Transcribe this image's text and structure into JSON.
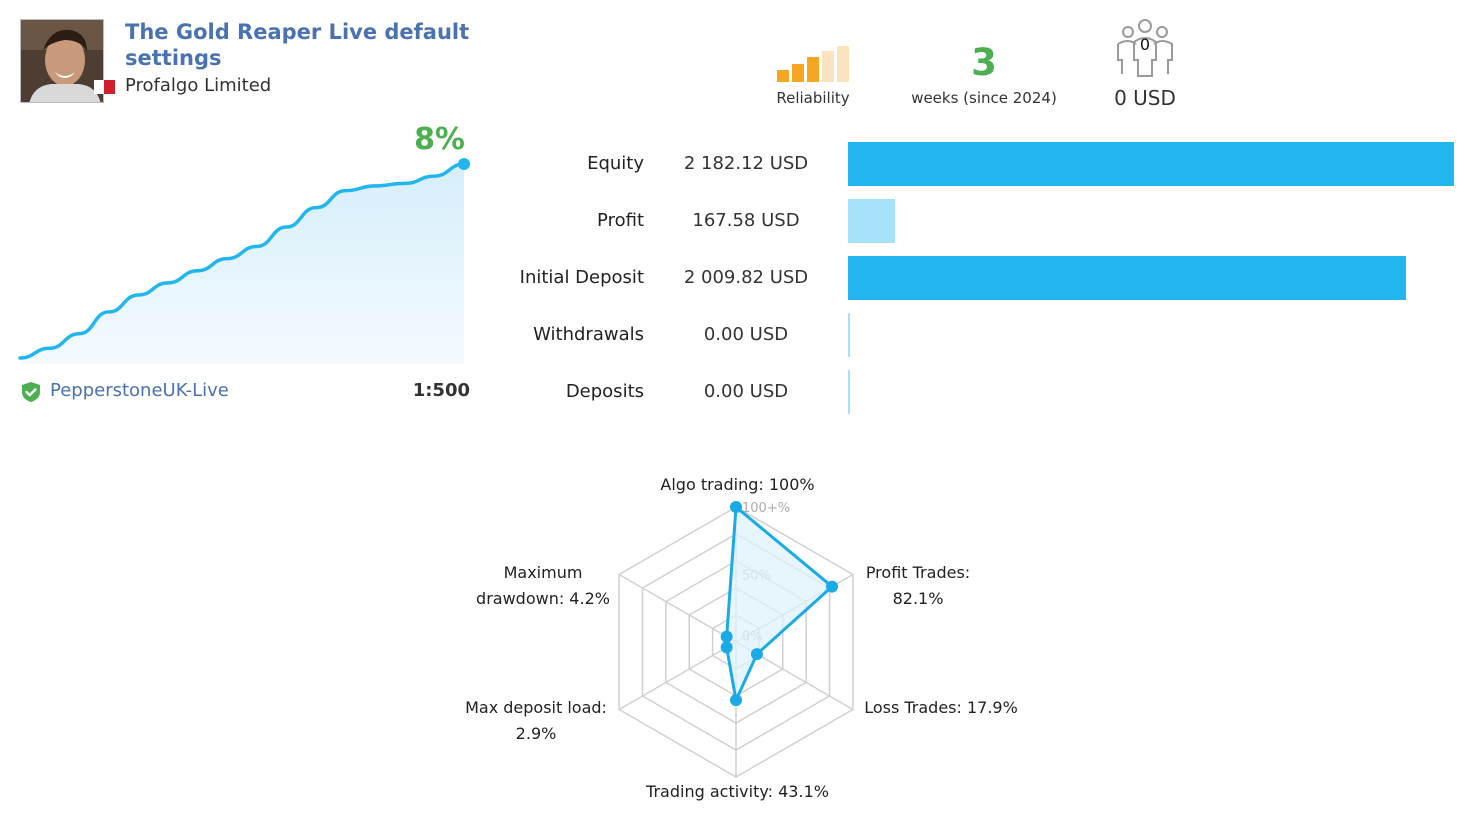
{
  "signal": {
    "title": "The Gold Reaper Live default settings",
    "author": "Profalgo Limited",
    "avatar_icon": "user-photo-icon",
    "flag_icon": "country-flag-icon"
  },
  "stats": {
    "reliability_label": "Reliability",
    "reliability_level": 3,
    "reliability_max": 5,
    "weeks_value": "3",
    "weeks_label": "weeks (since 2024)",
    "subscribers_count": "0",
    "subscribers_icon": "subscribers-icon",
    "funds_label": "0 USD"
  },
  "growth": {
    "percent_label": "8%",
    "server": "PepperstoneUK-Live",
    "leverage": "1:500",
    "verified_icon": "verified-shield-icon",
    "curve": [
      0.0,
      0.4,
      1.0,
      1.9,
      2.6,
      3.1,
      3.6,
      4.1,
      4.6,
      5.4,
      6.2,
      6.9,
      7.1,
      7.2,
      7.5,
      8.0
    ]
  },
  "balance": {
    "max_value": 2182.12,
    "rows": [
      {
        "label": "Equity",
        "value": "2 182.12 USD",
        "amount": 2182.12,
        "color": "#22b5ee"
      },
      {
        "label": "Profit",
        "value": "167.58 USD",
        "amount": 167.58,
        "color": "#a8e2fa"
      },
      {
        "label": "Initial Deposit",
        "value": "2 009.82 USD",
        "amount": 2009.82,
        "color": "#22b5ee"
      },
      {
        "label": "Withdrawals",
        "value": "0.00 USD",
        "amount": 0,
        "color": "#a8e2fa"
      },
      {
        "label": "Deposits",
        "value": "0.00 USD",
        "amount": 0,
        "color": "#a8e2fa"
      }
    ]
  },
  "radar": {
    "ticks": [
      "100+%",
      "50%",
      "0%"
    ],
    "axes": [
      {
        "name": "Algo trading",
        "line1": "Algo trading: 100%",
        "line2": "",
        "value": 100
      },
      {
        "name": "Profit Trades",
        "line1": "Profit Trades:",
        "line2": "82.1%",
        "value": 82.1
      },
      {
        "name": "Loss Trades",
        "line1": "Loss Trades: 17.9%",
        "line2": "",
        "value": 17.9
      },
      {
        "name": "Trading activity",
        "line1": "Trading activity: 43.1%",
        "line2": "",
        "value": 43.1
      },
      {
        "name": "Max deposit load",
        "line1": "Max deposit load:",
        "line2": "2.9%",
        "value": 2.9
      },
      {
        "name": "Maximum drawdown",
        "line1": "Maximum",
        "line2": "drawdown: 4.2%",
        "value": 4.2
      }
    ],
    "colors": {
      "line": "#1aabe6",
      "fill": "#dff3fc",
      "grid": "#d0d0d0"
    }
  }
}
